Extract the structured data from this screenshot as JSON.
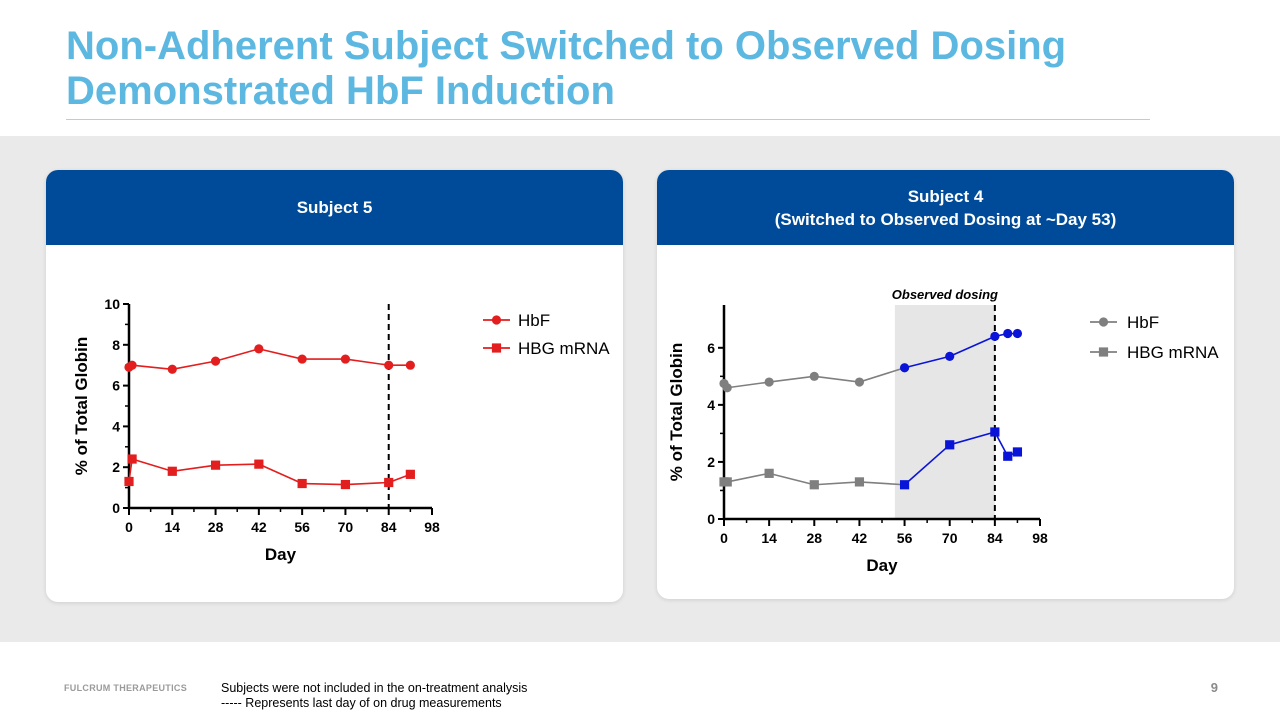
{
  "slide": {
    "title_line1": "Non-Adherent Subject Switched to Observed Dosing",
    "title_line2": "Demonstrated HbF Induction",
    "brand": "FULCRUM THERAPEUTICS",
    "footnote_line1": "Subjects were not included in the on-treatment analysis",
    "footnote_line2": "----- Represents last day of on drug measurements",
    "page_number": "9",
    "colors": {
      "title": "#5cb8e0",
      "header": "#004b99",
      "red": "#e31e1e",
      "gray": "#7f7f7f",
      "blue": "#0a14d8",
      "shade": "#e6e6e6"
    }
  },
  "cards": [
    {
      "header_line1": "Subject 5",
      "header_line2": ""
    },
    {
      "header_line1": "Subject 4",
      "header_line2": "(Switched to Observed Dosing at ~Day 53)"
    }
  ],
  "chart_data": [
    {
      "type": "line",
      "title": "Subject 5",
      "xlabel": "Day",
      "ylabel": "% of Total Globin",
      "xlim": [
        0,
        98
      ],
      "ylim": [
        0,
        10
      ],
      "xticks": [
        0,
        14,
        28,
        42,
        56,
        70,
        84,
        98
      ],
      "yticks": [
        0,
        2,
        4,
        6,
        8,
        10
      ],
      "vline_day": 84,
      "legend_position": "top-right",
      "series": [
        {
          "name": "HbF",
          "marker": "circle",
          "color": "#e31e1e",
          "x": [
            0,
            1,
            14,
            28,
            42,
            56,
            70,
            84,
            91
          ],
          "y": [
            6.9,
            7.0,
            6.8,
            7.2,
            7.8,
            7.3,
            7.3,
            7.0,
            7.0
          ]
        },
        {
          "name": "HBG mRNA",
          "marker": "square",
          "color": "#e31e1e",
          "x": [
            0,
            1,
            14,
            28,
            42,
            56,
            70,
            84,
            91
          ],
          "y": [
            1.3,
            2.4,
            1.8,
            2.1,
            2.15,
            1.2,
            1.15,
            1.25,
            1.65
          ]
        }
      ]
    },
    {
      "type": "line",
      "title": "Subject 4 (Switched to Observed Dosing at ~Day 53)",
      "xlabel": "Day",
      "ylabel": "% of Total Globin",
      "xlim": [
        0,
        98
      ],
      "ylim": [
        0,
        7.5
      ],
      "xticks": [
        0,
        14,
        28,
        42,
        56,
        70,
        84,
        98
      ],
      "yticks": [
        0,
        2,
        4,
        6
      ],
      "vline_day": 84,
      "shaded_region": {
        "from": 53,
        "to": 84,
        "label": "Observed dosing"
      },
      "legend_position": "top-right",
      "series": [
        {
          "name": "HbF",
          "marker": "circle",
          "color": "#7f7f7f",
          "switch_color": "#0a14d8",
          "switch_index": 5,
          "x": [
            0,
            1,
            14,
            28,
            42,
            56,
            70,
            84,
            88,
            91
          ],
          "y": [
            4.75,
            4.6,
            4.8,
            5.0,
            4.8,
            5.3,
            5.7,
            6.4,
            6.5,
            6.5
          ]
        },
        {
          "name": "HBG mRNA",
          "marker": "square",
          "color": "#7f7f7f",
          "switch_color": "#0a14d8",
          "switch_index": 5,
          "x": [
            0,
            1,
            14,
            28,
            42,
            56,
            70,
            84,
            88,
            91
          ],
          "y": [
            1.3,
            1.3,
            1.6,
            1.2,
            1.3,
            1.2,
            2.6,
            3.05,
            2.2,
            2.35
          ]
        }
      ]
    }
  ]
}
